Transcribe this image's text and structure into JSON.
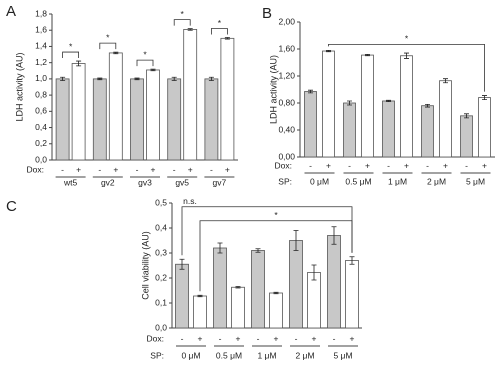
{
  "chart_data": [
    {
      "type": "bar",
      "panel": "A",
      "y_label": "LDH activity (AU)",
      "x_row_label": "Dox:",
      "categories": [
        "wt5",
        "gv2",
        "gv3",
        "gv5",
        "gv7"
      ],
      "series": [
        {
          "name": "-",
          "color": "#c8c8c8",
          "values": [
            1.0,
            1.0,
            1.0,
            1.0,
            1.0
          ],
          "errors": [
            0.02,
            0.01,
            0.01,
            0.02,
            0.02
          ]
        },
        {
          "name": "+",
          "color": "#ffffff",
          "values": [
            1.19,
            1.32,
            1.11,
            1.61,
            1.5
          ],
          "errors": [
            0.03,
            0.01,
            0.01,
            0.01,
            0.01
          ]
        }
      ],
      "significance": [
        "*",
        "*",
        "*",
        "*",
        "*"
      ],
      "ylim": [
        0,
        1.8
      ],
      "yticks": [
        {
          "value": 0,
          "label": "0,0"
        },
        {
          "value": 0.2,
          "label": "0,2"
        },
        {
          "value": 0.4,
          "label": "0,4"
        },
        {
          "value": 0.6,
          "label": "0,6"
        },
        {
          "value": 0.8,
          "label": "0,8"
        },
        {
          "value": 1.0,
          "label": "1,0"
        },
        {
          "value": 1.2,
          "label": "1,2"
        },
        {
          "value": 1.4,
          "label": "1,4"
        },
        {
          "value": 1.6,
          "label": "1,6"
        },
        {
          "value": 1.8,
          "label": "1,8"
        }
      ]
    },
    {
      "type": "bar",
      "panel": "B",
      "y_label": "LDH activity (AU)",
      "x_row_label": "Dox:",
      "group_label": "SP:",
      "categories": [
        "0 μM",
        "0.5 μM",
        "1 μM",
        "2 μM",
        "5 μM"
      ],
      "series": [
        {
          "name": "-",
          "color": "#c8c8c8",
          "values": [
            0.97,
            0.8,
            0.83,
            0.76,
            0.61
          ],
          "errors": [
            0.02,
            0.03,
            0.01,
            0.02,
            0.03
          ]
        },
        {
          "name": "+",
          "color": "#ffffff",
          "values": [
            1.57,
            1.51,
            1.5,
            1.13,
            0.88
          ],
          "errors": [
            0.01,
            0.01,
            0.04,
            0.03,
            0.03
          ]
        }
      ],
      "comparisons": [
        {
          "label": "*",
          "from": "0 μM",
          "from_series": "+",
          "to": "5 μM",
          "to_series": "+"
        }
      ],
      "ylim": [
        0,
        2.0
      ],
      "yticks": [
        {
          "value": 0,
          "label": "0,00"
        },
        {
          "value": 0.4,
          "label": "0,40"
        },
        {
          "value": 0.8,
          "label": "0,80"
        },
        {
          "value": 1.2,
          "label": "1,20"
        },
        {
          "value": 1.6,
          "label": "1,60"
        },
        {
          "value": 2.0,
          "label": "2,00"
        }
      ]
    },
    {
      "type": "bar",
      "panel": "C",
      "y_label": "Cell viability (AU)",
      "x_row_label": "Dox:",
      "group_label": "SP:",
      "categories": [
        "0 μM",
        "0.5 μM",
        "1 μM",
        "2 μM",
        "5 μM"
      ],
      "series": [
        {
          "name": "-",
          "color": "#c8c8c8",
          "values": [
            0.255,
            0.32,
            0.31,
            0.35,
            0.37
          ],
          "errors": [
            0.02,
            0.02,
            0.007,
            0.04,
            0.035
          ]
        },
        {
          "name": "+",
          "color": "#ffffff",
          "values": [
            0.128,
            0.163,
            0.14,
            0.222,
            0.27
          ],
          "errors": [
            0.003,
            0.003,
            0.003,
            0.03,
            0.015
          ]
        }
      ],
      "comparisons": [
        {
          "label": "n.s.",
          "from": "0 μM",
          "from_series": "-",
          "to": "5 μM",
          "to_series": "+"
        },
        {
          "label": "*",
          "from": "0 μM",
          "from_series": "+",
          "to": "5 μM",
          "to_series": "+"
        }
      ],
      "ylim": [
        0,
        0.5
      ],
      "yticks": [
        {
          "value": 0,
          "label": "0,0"
        },
        {
          "value": 0.1,
          "label": "0,1"
        },
        {
          "value": 0.2,
          "label": "0,2"
        },
        {
          "value": 0.3,
          "label": "0,3"
        },
        {
          "value": 0.4,
          "label": "0,4"
        },
        {
          "value": 0.5,
          "label": "0,5"
        }
      ]
    }
  ]
}
